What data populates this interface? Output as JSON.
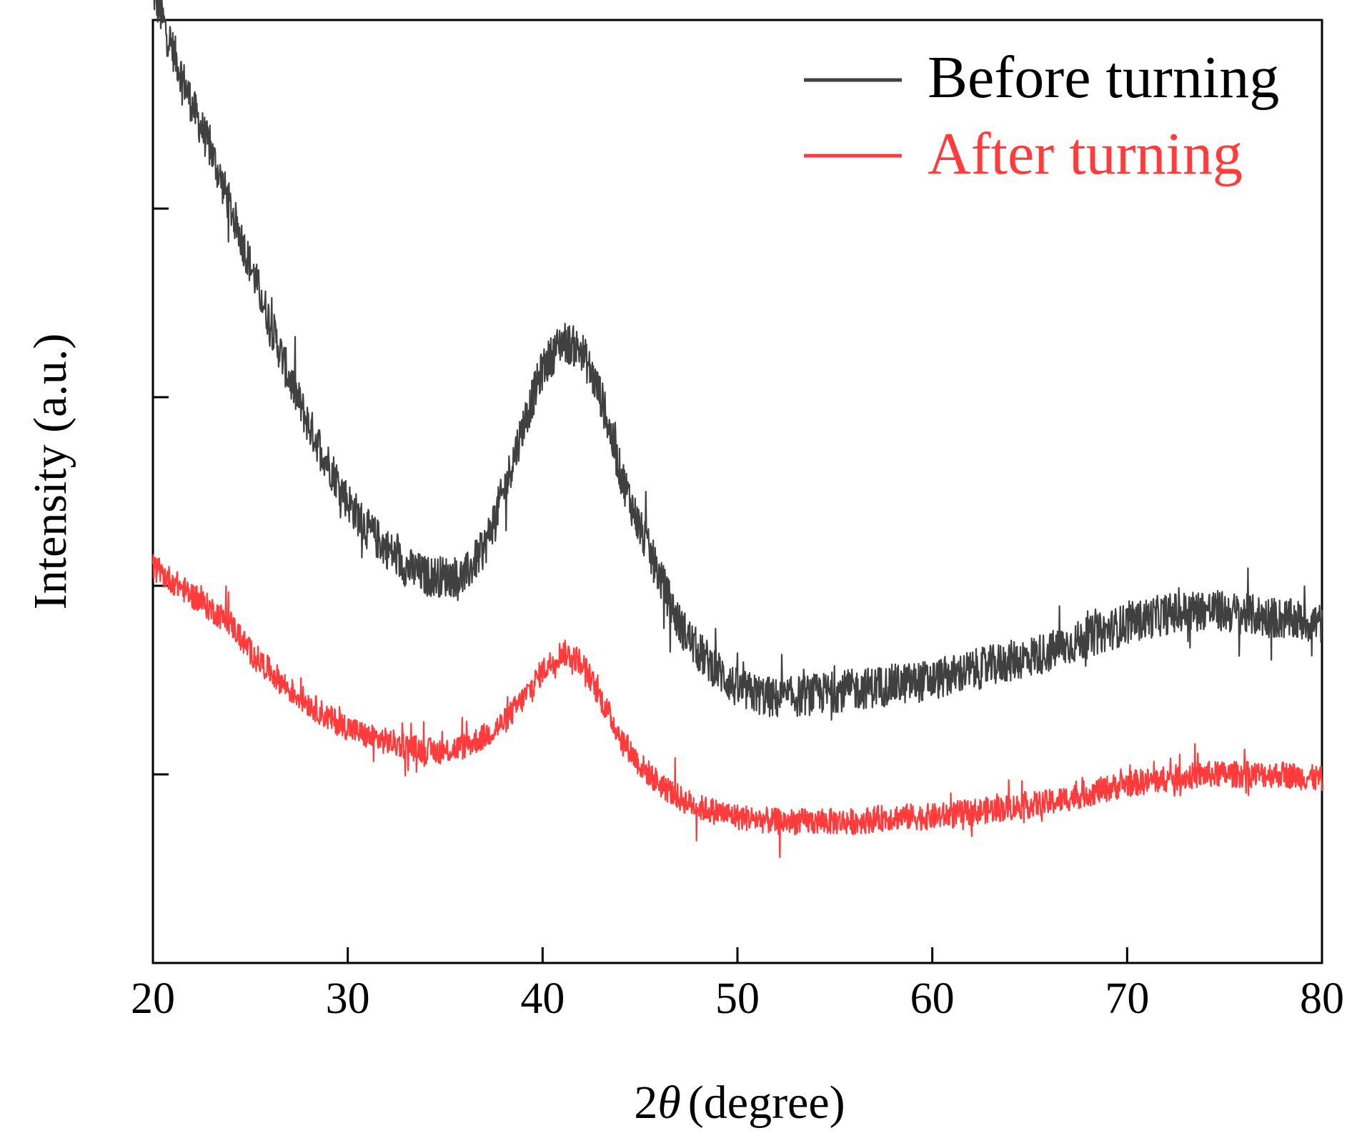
{
  "chart_data": {
    "type": "line",
    "xlabel": "2θ (degree)",
    "xlabel_prefix": "2",
    "xlabel_theta": "θ",
    "xlabel_suffix": "(degree)",
    "ylabel": "Intensity (a.u.)",
    "xlim": [
      20,
      80
    ],
    "ylim": [
      0,
      100
    ],
    "x_ticks": [
      20,
      30,
      40,
      50,
      60,
      70,
      80
    ],
    "x_tick_labels": [
      "20",
      "30",
      "40",
      "50",
      "60",
      "70",
      "80"
    ],
    "y_ticks_unlabeled": [
      20,
      40,
      60,
      80
    ],
    "grid": false,
    "legend_position": "top-right",
    "series": [
      {
        "name": "Before turning",
        "color": "#404040",
        "x": [
          20,
          21,
          22,
          23,
          24,
          25,
          26,
          27,
          28,
          29,
          30,
          31,
          32,
          33,
          34,
          35,
          36,
          37,
          38,
          39,
          40,
          41,
          42,
          43,
          44,
          45,
          46,
          47,
          48,
          49,
          50,
          52,
          54,
          56,
          58,
          60,
          62,
          64,
          66,
          68,
          70,
          72,
          74,
          76,
          78,
          80
        ],
        "y": [
          103,
          97,
          91,
          86,
          80,
          74,
          68,
          62,
          57,
          53,
          49,
          46,
          44,
          42,
          41,
          41,
          41,
          44,
          50,
          57,
          63,
          66,
          65,
          60,
          52,
          46,
          41,
          36,
          33,
          31,
          29,
          28,
          28.5,
          29,
          29.5,
          30,
          31,
          32,
          33,
          34.5,
          36,
          37,
          37.5,
          37,
          36.5,
          36
        ]
      },
      {
        "name": "After turning",
        "color": "#FF3B3B",
        "x": [
          20,
          21,
          22,
          23,
          24,
          25,
          26,
          27,
          28,
          29,
          30,
          31,
          32,
          33,
          34,
          35,
          36,
          37,
          38,
          39,
          40,
          41,
          42,
          43,
          44,
          45,
          46,
          47,
          48,
          49,
          50,
          52,
          54,
          56,
          58,
          60,
          62,
          64,
          66,
          68,
          70,
          72,
          74,
          76,
          78,
          80
        ],
        "y": [
          42,
          40.5,
          39,
          37.5,
          36,
          33,
          31,
          29,
          27.5,
          26,
          25,
          24,
          23.5,
          23,
          22.5,
          22.5,
          23,
          24,
          25.5,
          28,
          31,
          33,
          32,
          28,
          24,
          21,
          19,
          17.5,
          16.5,
          16,
          15.5,
          15,
          15,
          15,
          15.5,
          15.5,
          16,
          16.5,
          17,
          18,
          19,
          19.5,
          20,
          20,
          20,
          19.5
        ]
      }
    ]
  }
}
